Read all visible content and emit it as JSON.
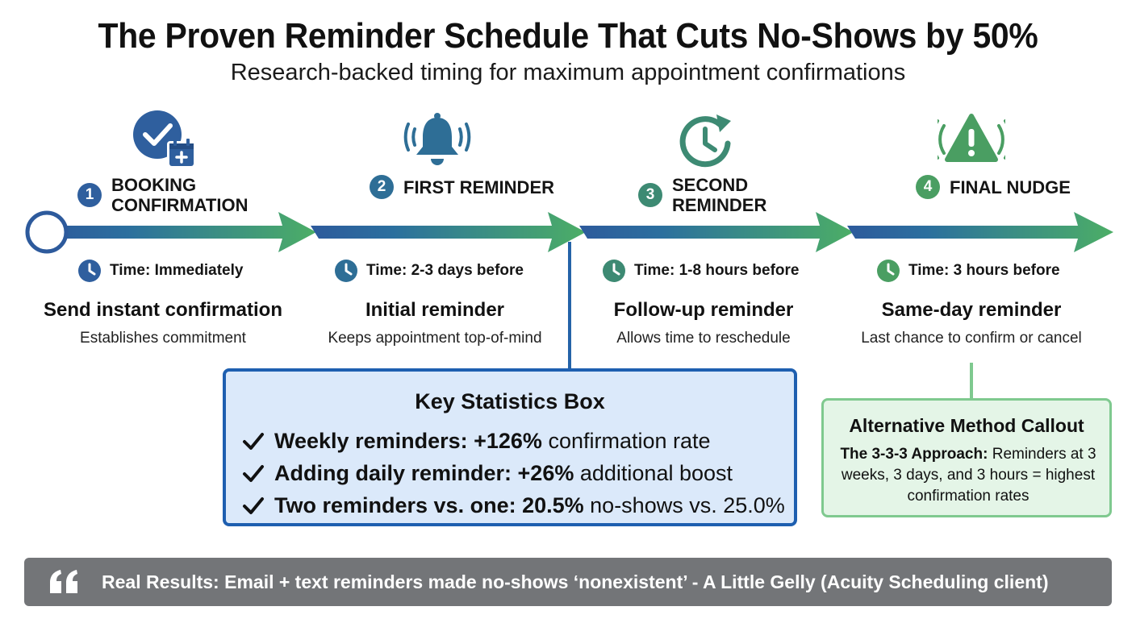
{
  "title": "The Proven Reminder Schedule That Cuts No-Shows by 50%",
  "subtitle": "Research-backed timing for maximum appointment confirmations",
  "steps": [
    {
      "number": "1",
      "label": "BOOKING CONFIRMATION",
      "time": "Time: Immediately",
      "heading": "Send instant confirmation",
      "description": "Establishes commitment",
      "icon": "check-calendar-icon",
      "color": "#2f5f9e"
    },
    {
      "number": "2",
      "label": "FIRST REMINDER",
      "time": "Time: 2-3 days before",
      "heading": "Initial reminder",
      "description": "Keeps appointment top-of-mind",
      "icon": "ringing-bell-icon",
      "color": "#2e6e96"
    },
    {
      "number": "3",
      "label": "SECOND REMINDER",
      "time": "Time: 1-8 hours before",
      "heading": "Follow-up reminder",
      "description": "Allows time to reschedule",
      "icon": "clock-refresh-icon",
      "color": "#3d8a73"
    },
    {
      "number": "4",
      "label": "FINAL NUDGE",
      "time": "Time: 3 hours before",
      "heading": "Same-day reminder",
      "description": "Last chance to confirm or cancel",
      "icon": "alert-warning-icon",
      "color": "#4a9e62"
    }
  ],
  "stats_box": {
    "title": "Key Statistics Box",
    "items": [
      {
        "bold": "Weekly reminders: +126%",
        "rest": "confirmation rate"
      },
      {
        "bold": "Adding daily reminder: +26%",
        "rest": "additional boost"
      },
      {
        "bold": "Two reminders vs. one: 20.5%",
        "rest": "no-shows vs. 25.0%"
      }
    ]
  },
  "alternative_box": {
    "title": "Alternative Method Callout",
    "bold": "The 3-3-3 Approach:",
    "text": "Reminders at 3 weeks, 3 days, and 3 hours = highest confirmation rates"
  },
  "quote": "Real Results: Email + text reminders made no-shows ‘nonexistent’ - A Little Gelly (Acuity Scheduling client)",
  "colors": {
    "blue": "#2f5f9e",
    "teal": "#3d8a73",
    "green": "#4a9e62",
    "stats_border": "#1e5fb0",
    "stats_fill": "#dbe9fa",
    "alt_border": "#7fc98f",
    "alt_fill": "#e4f5e7",
    "quote_bar": "#737578"
  }
}
